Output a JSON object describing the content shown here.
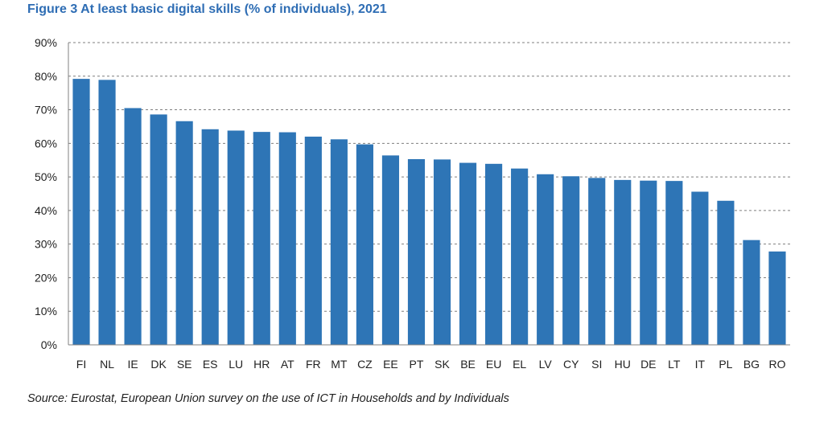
{
  "title": "Figure 3 At least basic digital skills (% of individuals), 2021",
  "source": "Source: Eurostat, European Union survey on the use of ICT in Households and by Individuals",
  "colors": {
    "bar": "#2e75b6",
    "title": "#2e6db4",
    "grid": "#7f7f7f",
    "axis": "#808080",
    "text": "#222222"
  },
  "chart_data": {
    "type": "bar",
    "title": "Figure 3 At least basic digital skills (% of individuals), 2021",
    "xlabel": "",
    "ylabel": "",
    "ylim": [
      0,
      90
    ],
    "yticks": [
      "0%",
      "10%",
      "20%",
      "30%",
      "40%",
      "50%",
      "60%",
      "70%",
      "80%",
      "90%"
    ],
    "grid": true,
    "legend": "none",
    "categories": [
      "FI",
      "NL",
      "IE",
      "DK",
      "SE",
      "ES",
      "LU",
      "HR",
      "AT",
      "FR",
      "MT",
      "CZ",
      "EE",
      "PT",
      "SK",
      "BE",
      "EU",
      "EL",
      "LV",
      "CY",
      "SI",
      "HU",
      "DE",
      "LT",
      "IT",
      "PL",
      "BG",
      "RO"
    ],
    "values": [
      79.2,
      78.9,
      70.5,
      68.6,
      66.6,
      64.2,
      63.8,
      63.4,
      63.3,
      62.0,
      61.2,
      59.7,
      56.4,
      55.3,
      55.2,
      54.2,
      53.9,
      52.5,
      50.8,
      50.2,
      49.7,
      49.1,
      48.9,
      48.8,
      45.6,
      42.9,
      31.2,
      27.8
    ]
  }
}
